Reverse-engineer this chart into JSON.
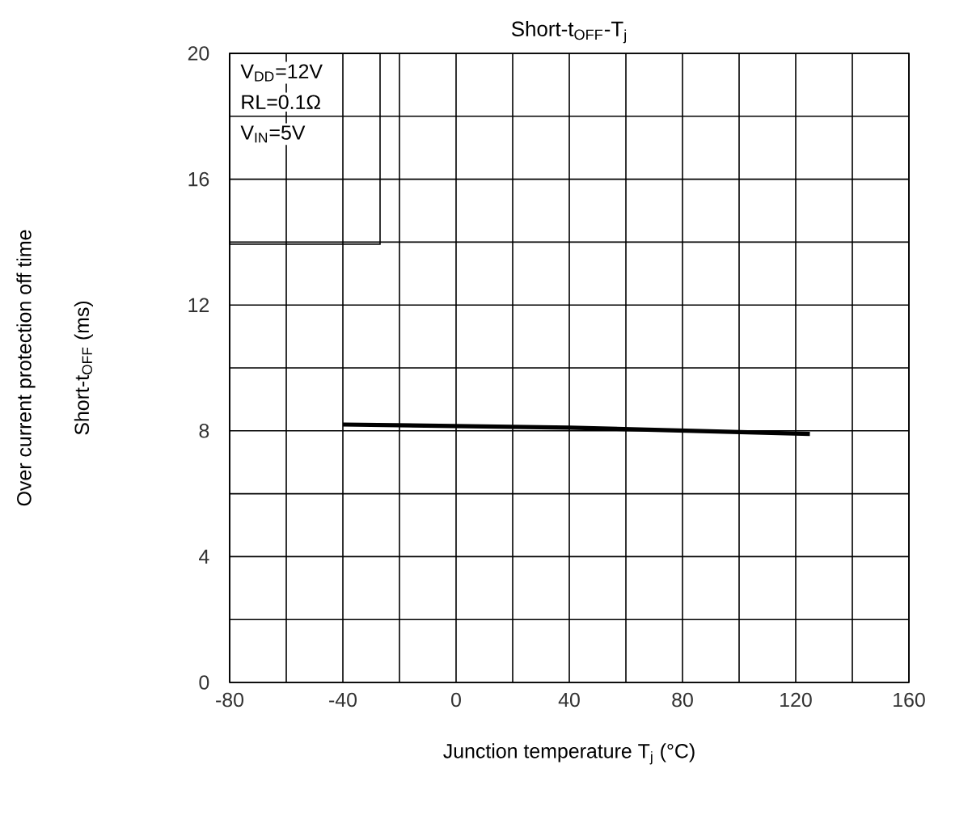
{
  "chart_data": {
    "type": "line",
    "title": "Short-t$_{OFF}$-T$_{j}$",
    "xlabel": "Junction temperature   T$_{j}$   (°C)",
    "ylabel": "Short-t$_{OFF}$   (ms)",
    "annotations": [
      "V$_{DD}$=12V",
      "RL=0.1Ω",
      "V$_{IN}$=5V",
      "Over current protection off time"
    ],
    "x": [
      -40,
      40,
      125
    ],
    "series": [
      {
        "color": "#000000",
        "values": [
          8.2,
          8.1,
          7.9
        ]
      }
    ],
    "xlim": [
      -80,
      160
    ],
    "xticks": [
      -80,
      {
        "value": -60,
        "label": null
      },
      -40,
      {
        "value": -20,
        "label": null
      },
      0,
      {
        "value": 20,
        "label": null
      },
      40,
      {
        "value": 60,
        "label": null
      },
      80,
      {
        "value": 100,
        "label": null
      },
      120,
      {
        "value": 140,
        "label": null
      },
      160
    ],
    "ylim": [
      0,
      20
    ],
    "yticks": [
      0,
      {
        "value": 2,
        "label": null
      },
      4,
      {
        "value": 6,
        "label": null
      },
      8,
      {
        "value": 10,
        "label": null
      },
      12,
      {
        "value": 14,
        "label": null
      },
      16,
      {
        "value": 18,
        "label": null
      },
      20
    ],
    "grid": true,
    "marker": "none",
    "line_style": "solid"
  }
}
